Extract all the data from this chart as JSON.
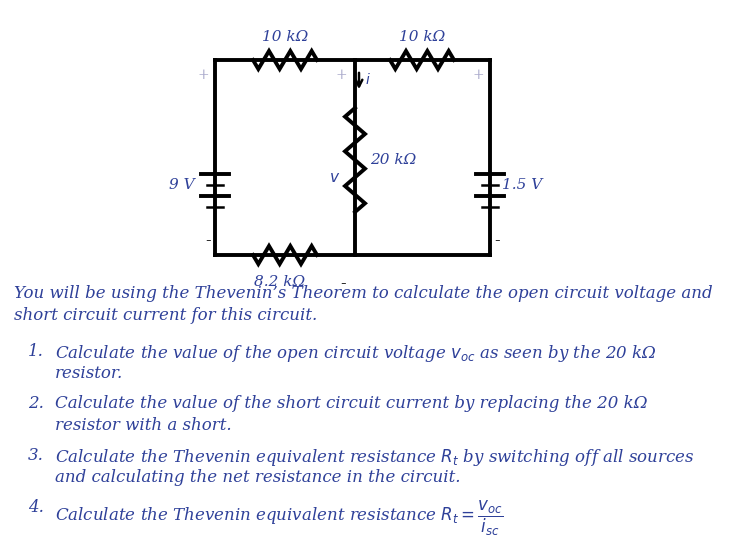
{
  "bg_color": "#ffffff",
  "text_color": "#2e4099",
  "circuit_color": "#000000",
  "fig_width": 7.55,
  "fig_height": 5.48,
  "intro_line1": "You will be using the Thevenin’s Theorem to calculate the open circuit voltage and",
  "intro_line2": "short circuit current for this circuit.",
  "item1a": "Calculate the value of the open circuit voltage $v_{oc}$ as seen by the 20 kΩ",
  "item1b": "resistor.",
  "item2a": "Calculate the value of the short circuit current by replacing the 20 kΩ",
  "item2b": "resistor with a short.",
  "item3a": "Calculate the Thevenin equivalent resistance $R_t$ by switching off all sources",
  "item3b": "and calculating the net resistance in the circuit.",
  "item4": "Calculate the Thevenin equivalent resistance $R_t = \\dfrac{v_{oc}}{i_{sc}}$",
  "label_9V": "9 V",
  "label_1p5V": "1.5 V",
  "label_10k1": "10 kΩ",
  "label_10k2": "10 kΩ",
  "label_20k": "20 kΩ",
  "label_8p2k": "8.2 kΩ",
  "label_v": "$v$",
  "label_i": "$i$",
  "plus_color": "#aaaacc",
  "minus_color": "#000000"
}
